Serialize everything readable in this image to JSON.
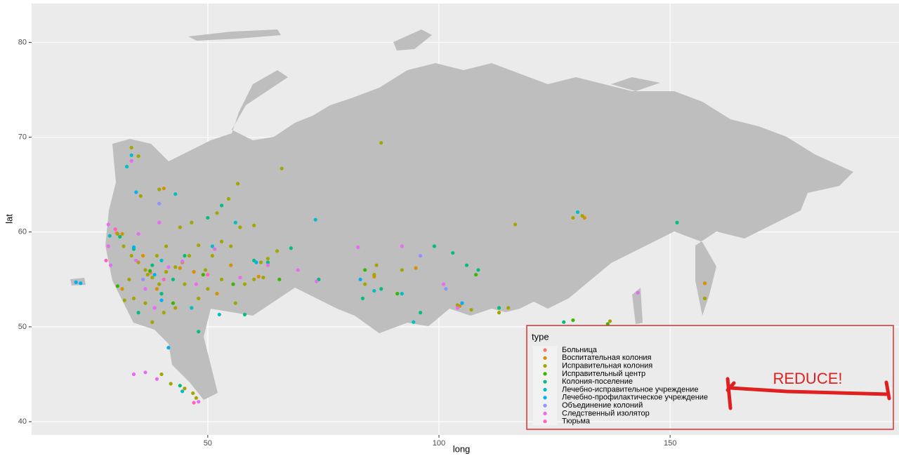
{
  "chart_data": {
    "type": "scatter",
    "x_label": "long",
    "y_label": "lat",
    "xlim": [
      11.9,
      199.5
    ],
    "ylim": [
      38.6,
      84.1
    ],
    "xticks": [
      50,
      100,
      150
    ],
    "yticks": [
      40,
      50,
      60,
      70,
      80
    ],
    "grid": true,
    "legend_title": "type",
    "legend_position": "bottom-right",
    "annotation": "REDUCE!",
    "series": [
      {
        "name": "Больница",
        "color": "#F8766D",
        "x": [
          37.6,
          30.3
        ],
        "values": [
          55.7,
          59.9
        ]
      },
      {
        "name": "Воспитательная колония",
        "color": "#D89000",
        "x": [
          31.5,
          36,
          39,
          44,
          47,
          52,
          55,
          61,
          86,
          95,
          104.5,
          131.5,
          157.5,
          40.5,
          31.5
        ],
        "values": [
          59.8,
          57.5,
          54,
          56.2,
          55.8,
          53.5,
          56.5,
          55.3,
          55.3,
          56.2,
          52.2,
          61.5,
          54.6,
          64.6,
          54
        ]
      },
      {
        "name": "Исправительная колония",
        "color": "#A3A500",
        "x": [
          33.5,
          35,
          39.5,
          35.5,
          54.5,
          56.5,
          66,
          87.5,
          30.5,
          31.8,
          33.5,
          35,
          36.5,
          38,
          39.5,
          41,
          43,
          44.5,
          46,
          48,
          49.5,
          51,
          53,
          55,
          57,
          60,
          61.5,
          63,
          65,
          53,
          50,
          48,
          45,
          43,
          40.5,
          38,
          36.5,
          34,
          32,
          33,
          37,
          39,
          41,
          44,
          46.5,
          52,
          56,
          58,
          60,
          62,
          74,
          84,
          86,
          86.5,
          92,
          104,
          107,
          113,
          115,
          116.5,
          129,
          131,
          137,
          157.5,
          45,
          46.8,
          40,
          42,
          47.5
        ],
        "values": [
          68.9,
          68,
          64.5,
          63.8,
          63.5,
          65.1,
          66.7,
          69.4,
          59.8,
          58.5,
          57.5,
          56.8,
          56,
          55.2,
          54.5,
          55.8,
          56.3,
          56.8,
          57.5,
          58.6,
          56,
          57.5,
          59,
          58.5,
          60.5,
          60.7,
          56.8,
          57.2,
          58,
          55,
          54,
          53,
          54.5,
          52,
          51.5,
          50.5,
          52.5,
          53,
          52.8,
          55,
          55.5,
          57.5,
          58.5,
          60.5,
          61,
          62,
          52.5,
          54.5,
          55,
          55.2,
          55,
          54.5,
          55.5,
          56.5,
          56,
          52.3,
          51.8,
          51.5,
          52,
          60.8,
          61.5,
          61.7,
          50.6,
          53,
          43.5,
          43,
          45,
          44,
          42.5
        ]
      },
      {
        "name": "Исправительный центр",
        "color": "#39B600",
        "x": [
          30.5,
          37.5,
          42.5,
          49,
          55.5,
          65.5,
          84,
          91,
          108,
          129,
          136.5
        ],
        "values": [
          54.3,
          55.9,
          52.5,
          55.5,
          54.5,
          55,
          56,
          53.5,
          55.5,
          50.7,
          50.3
        ]
      },
      {
        "name": "Колония-поселение",
        "color": "#00BF7D",
        "x": [
          31,
          34,
          38,
          40,
          42.5,
          45,
          50,
          53,
          60,
          63,
          68,
          74,
          83.5,
          87.5,
          96,
          99,
          103,
          106,
          108.5,
          113,
          127,
          151.5,
          58,
          48,
          44,
          35
        ],
        "values": [
          59.5,
          58.2,
          56.5,
          53.5,
          55,
          57.5,
          61.5,
          62.8,
          57,
          56.8,
          58.3,
          55,
          53,
          54,
          51.5,
          58.5,
          57.8,
          56.5,
          56,
          52,
          50.5,
          61,
          51.3,
          49.5,
          43.8,
          51.5
        ]
      },
      {
        "name": "Лечебно-исправительное учреждение",
        "color": "#00BFC4",
        "x": [
          28.8,
          33.5,
          32.5,
          43,
          51,
          56,
          40,
          46.5,
          52.5,
          73.3,
          86,
          94.5,
          130,
          92,
          44.5
        ],
        "values": [
          59.6,
          68.1,
          66.9,
          64,
          58.5,
          61,
          57,
          52,
          51.3,
          61.3,
          53.8,
          50.5,
          62.1,
          53.5,
          43.2
        ]
      },
      {
        "name": "Лечебно-профилактическое учреждение",
        "color": "#00B0F6",
        "x": [
          21.5,
          22.5,
          34.5,
          34,
          38.5,
          40,
          41.5,
          60.5,
          83,
          105
        ],
        "values": [
          54.7,
          54.6,
          64.2,
          58.4,
          55.5,
          52.8,
          47.8,
          56.8,
          55,
          52.5
        ]
      },
      {
        "name": "Объединение колоний",
        "color": "#9590FF",
        "x": [
          36,
          39.5,
          96,
          101.5
        ],
        "values": [
          55,
          63,
          57.5,
          54
        ]
      },
      {
        "name": "Следственный изолятор",
        "color": "#E76BF3",
        "x": [
          28.5,
          28.5,
          29,
          33.5,
          35,
          34.5,
          36.5,
          38.5,
          39.5,
          41.5,
          44.5,
          47.5,
          51.5,
          57,
          63,
          69.5,
          73.5,
          82.5,
          92,
          101,
          104,
          143,
          34,
          36.5,
          39,
          48
        ],
        "values": [
          60.8,
          58.5,
          56.5,
          67.5,
          59.8,
          57,
          54,
          52,
          61,
          56.3,
          56.9,
          54.5,
          58.2,
          55.2,
          56.5,
          56,
          54.8,
          58.4,
          58.5,
          54.5,
          52,
          53.6,
          45,
          45.2,
          44.5,
          42.1
        ]
      },
      {
        "name": "Тюрьма",
        "color": "#FF62BC",
        "x": [
          28,
          30,
          40.5,
          50,
          47
        ],
        "values": [
          57,
          60.3,
          55,
          55.5,
          42
        ]
      }
    ]
  }
}
